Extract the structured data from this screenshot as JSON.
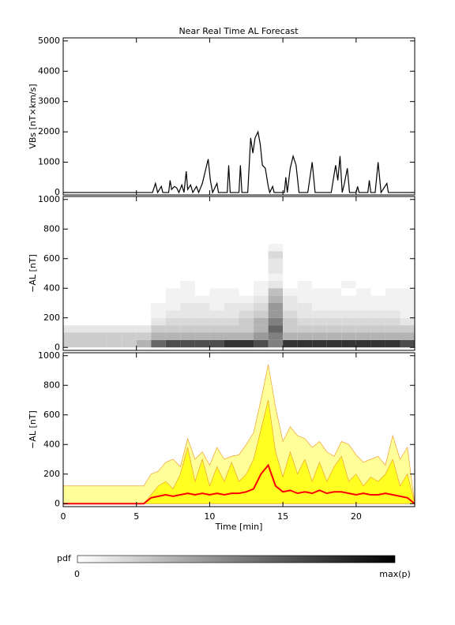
{
  "title": "Near Real Time AL Forecast",
  "chart_data": [
    {
      "type": "line",
      "y_label": "VBs [nT×km/s]",
      "color": "#000000",
      "x": [
        0,
        5.7,
        6.1,
        6.3,
        6.45,
        6.7,
        6.8,
        7.2,
        7.3,
        7.4,
        7.6,
        7.75,
        7.9,
        8.1,
        8.25,
        8.4,
        8.5,
        8.7,
        8.85,
        9.1,
        9.25,
        9.5,
        9.7,
        9.9,
        10.05,
        10.2,
        10.5,
        10.6,
        11.2,
        11.3,
        11.4,
        12.0,
        12.1,
        12.2,
        12.6,
        12.8,
        12.95,
        13.1,
        13.3,
        13.45,
        13.6,
        13.8,
        14.0,
        14.1,
        14.3,
        14.4,
        15.1,
        15.2,
        15.3,
        15.5,
        15.7,
        15.9,
        16.1,
        16.7,
        17.0,
        17.2,
        18.3,
        18.6,
        18.75,
        18.9,
        19.05,
        19.2,
        19.4,
        19.55,
        20.0,
        20.1,
        20.2,
        20.8,
        20.9,
        21.0,
        21.3,
        21.5,
        21.7,
        22.1,
        22.2,
        24
      ],
      "values": [
        0,
        0,
        0,
        300,
        0,
        200,
        0,
        0,
        400,
        100,
        200,
        150,
        0,
        250,
        0,
        700,
        100,
        250,
        0,
        200,
        0,
        300,
        700,
        1100,
        400,
        0,
        300,
        0,
        0,
        900,
        0,
        0,
        900,
        0,
        0,
        1800,
        1300,
        1800,
        2000,
        1600,
        900,
        800,
        200,
        0,
        200,
        0,
        0,
        500,
        0,
        800,
        1200,
        900,
        0,
        0,
        1000,
        0,
        0,
        900,
        400,
        1200,
        0,
        300,
        800,
        0,
        0,
        200,
        0,
        0,
        400,
        0,
        0,
        1000,
        0,
        300,
        0,
        0
      ],
      "xlim": [
        0,
        24
      ],
      "xticks": [
        0,
        5,
        10,
        15,
        20
      ],
      "ylim": [
        -80,
        5100
      ],
      "yticks": [
        0,
        1000,
        2000,
        3000,
        4000,
        5000
      ]
    },
    {
      "type": "heatmap",
      "y_label": "−AL [nT]",
      "x_edges": [
        0,
        1,
        2,
        3,
        4,
        5,
        6,
        7,
        8,
        9,
        10,
        11,
        12,
        13,
        14,
        15,
        16,
        17,
        18,
        19,
        20,
        21,
        22,
        23,
        24
      ],
      "y_edges": [
        0,
        50,
        100,
        150,
        200,
        250,
        300,
        350,
        400,
        450,
        500,
        550,
        600,
        650,
        700
      ],
      "z": [
        [
          0.2,
          0.2,
          0.2,
          0.2,
          0.2,
          0.3,
          0.6,
          0.7,
          0.7,
          0.7,
          0.7,
          0.8,
          0.8,
          0.7,
          0.5,
          0.8,
          0.8,
          0.8,
          0.8,
          0.8,
          0.8,
          0.8,
          0.8,
          0.7
        ],
        [
          0.2,
          0.2,
          0.2,
          0.2,
          0.2,
          0.2,
          0.3,
          0.3,
          0.3,
          0.3,
          0.3,
          0.3,
          0.3,
          0.4,
          0.5,
          0.3,
          0.3,
          0.3,
          0.3,
          0.3,
          0.3,
          0.3,
          0.3,
          0.3
        ],
        [
          0.1,
          0.1,
          0.1,
          0.1,
          0.1,
          0.1,
          0.2,
          0.2,
          0.2,
          0.2,
          0.2,
          0.2,
          0.2,
          0.3,
          0.6,
          0.2,
          0.2,
          0.2,
          0.2,
          0.2,
          0.2,
          0.2,
          0.2,
          0.2
        ],
        [
          0,
          0,
          0,
          0,
          0,
          0,
          0.1,
          0.15,
          0.15,
          0.15,
          0.15,
          0.15,
          0.2,
          0.3,
          0.5,
          0.2,
          0.15,
          0.15,
          0.15,
          0.15,
          0.15,
          0.15,
          0.15,
          0.1
        ],
        [
          0,
          0,
          0,
          0,
          0,
          0,
          0.05,
          0.1,
          0.1,
          0.1,
          0.1,
          0.1,
          0.15,
          0.2,
          0.4,
          0.15,
          0.1,
          0.1,
          0.1,
          0.1,
          0.1,
          0.1,
          0.1,
          0.05
        ],
        [
          0,
          0,
          0,
          0,
          0,
          0,
          0.05,
          0.05,
          0.1,
          0.1,
          0.05,
          0.1,
          0.1,
          0.15,
          0.4,
          0.1,
          0.1,
          0.05,
          0.05,
          0.05,
          0.05,
          0.05,
          0.05,
          0.05
        ],
        [
          0,
          0,
          0,
          0,
          0,
          0,
          0,
          0.05,
          0.05,
          0.05,
          0.05,
          0.05,
          0.05,
          0.1,
          0.3,
          0.1,
          0.05,
          0.05,
          0.05,
          0.05,
          0.05,
          0.05,
          0.05,
          0.05
        ],
        [
          0,
          0,
          0,
          0,
          0,
          0,
          0,
          0.05,
          0.05,
          0,
          0.05,
          0.05,
          0,
          0.05,
          0.25,
          0.05,
          0.05,
          0.05,
          0.05,
          0,
          0.05,
          0,
          0.05,
          0.05
        ],
        [
          0,
          0,
          0,
          0,
          0,
          0,
          0,
          0,
          0.05,
          0,
          0,
          0,
          0,
          0.05,
          0.1,
          0,
          0.05,
          0,
          0,
          0.05,
          0,
          0,
          0,
          0
        ],
        [
          0,
          0,
          0,
          0,
          0,
          0,
          0,
          0,
          0,
          0,
          0,
          0,
          0,
          0,
          0.05,
          0,
          0,
          0,
          0,
          0,
          0,
          0,
          0,
          0
        ],
        [
          0,
          0,
          0,
          0,
          0,
          0,
          0,
          0,
          0,
          0,
          0,
          0,
          0,
          0,
          0.1,
          0,
          0,
          0,
          0,
          0,
          0,
          0,
          0,
          0
        ],
        [
          0,
          0,
          0,
          0,
          0,
          0,
          0,
          0,
          0,
          0,
          0,
          0,
          0,
          0,
          0.1,
          0,
          0,
          0,
          0,
          0,
          0,
          0,
          0,
          0
        ],
        [
          0,
          0,
          0,
          0,
          0,
          0,
          0,
          0,
          0,
          0,
          0,
          0,
          0,
          0,
          0.15,
          0,
          0,
          0,
          0,
          0,
          0,
          0,
          0,
          0
        ],
        [
          0,
          0,
          0,
          0,
          0,
          0,
          0,
          0,
          0,
          0,
          0,
          0,
          0,
          0,
          0.05,
          0,
          0,
          0,
          0,
          0,
          0,
          0,
          0,
          0
        ]
      ],
      "xlim": [
        0,
        24
      ],
      "xticks": [
        0,
        5,
        10,
        15,
        20
      ],
      "ylim": [
        -20,
        1020
      ],
      "yticks": [
        0,
        200,
        400,
        600,
        800,
        1000
      ]
    },
    {
      "type": "area",
      "y_label": "−AL [nT]",
      "x_label": "Time [min]",
      "x": [
        0,
        0.5,
        1,
        1.5,
        2,
        2.5,
        3,
        3.5,
        4,
        4.5,
        5,
        5.5,
        6,
        6.5,
        7,
        7.5,
        8,
        8.5,
        9,
        9.5,
        10,
        10.5,
        11,
        11.5,
        12,
        12.5,
        13,
        13.5,
        14,
        14.5,
        15,
        15.5,
        16,
        16.5,
        17,
        17.5,
        18,
        18.5,
        19,
        19.5,
        20,
        20.5,
        21,
        21.5,
        22,
        22.5,
        23,
        23.5,
        24
      ],
      "series": [
        {
          "color": "#ffff99",
          "stroke": "#f0a030",
          "values": [
            120,
            120,
            120,
            120,
            120,
            120,
            120,
            120,
            120,
            120,
            120,
            120,
            200,
            220,
            280,
            300,
            250,
            440,
            300,
            350,
            260,
            380,
            300,
            320,
            330,
            400,
            480,
            700,
            940,
            650,
            420,
            520,
            460,
            440,
            380,
            420,
            350,
            320,
            420,
            400,
            330,
            280,
            300,
            320,
            260,
            460,
            300,
            380,
            0
          ]
        },
        {
          "color": "#ffff22",
          "stroke": "#f0a030",
          "values": [
            0,
            0,
            0,
            0,
            0,
            0,
            0,
            0,
            0,
            0,
            0,
            0,
            60,
            120,
            150,
            100,
            200,
            380,
            150,
            300,
            120,
            250,
            150,
            280,
            150,
            200,
            300,
            500,
            700,
            350,
            180,
            350,
            200,
            300,
            150,
            280,
            150,
            250,
            320,
            150,
            200,
            120,
            180,
            150,
            200,
            300,
            120,
            200,
            0
          ]
        },
        {
          "color": "#ff0000",
          "values": [
            0,
            0,
            0,
            0,
            0,
            0,
            0,
            0,
            0,
            0,
            0,
            0,
            40,
            50,
            60,
            50,
            60,
            70,
            60,
            70,
            60,
            70,
            60,
            70,
            70,
            80,
            100,
            200,
            260,
            120,
            80,
            90,
            70,
            80,
            70,
            90,
            70,
            80,
            80,
            70,
            60,
            70,
            60,
            60,
            70,
            60,
            50,
            40,
            0
          ]
        }
      ],
      "xlim": [
        0,
        24
      ],
      "xticks": [
        0,
        5,
        10,
        15,
        20
      ],
      "ylim": [
        -20,
        1020
      ],
      "yticks": [
        0,
        200,
        400,
        600,
        800,
        1000
      ]
    }
  ],
  "colorbar": {
    "label": "pdf",
    "min": 0,
    "max_label": "max(p)"
  }
}
